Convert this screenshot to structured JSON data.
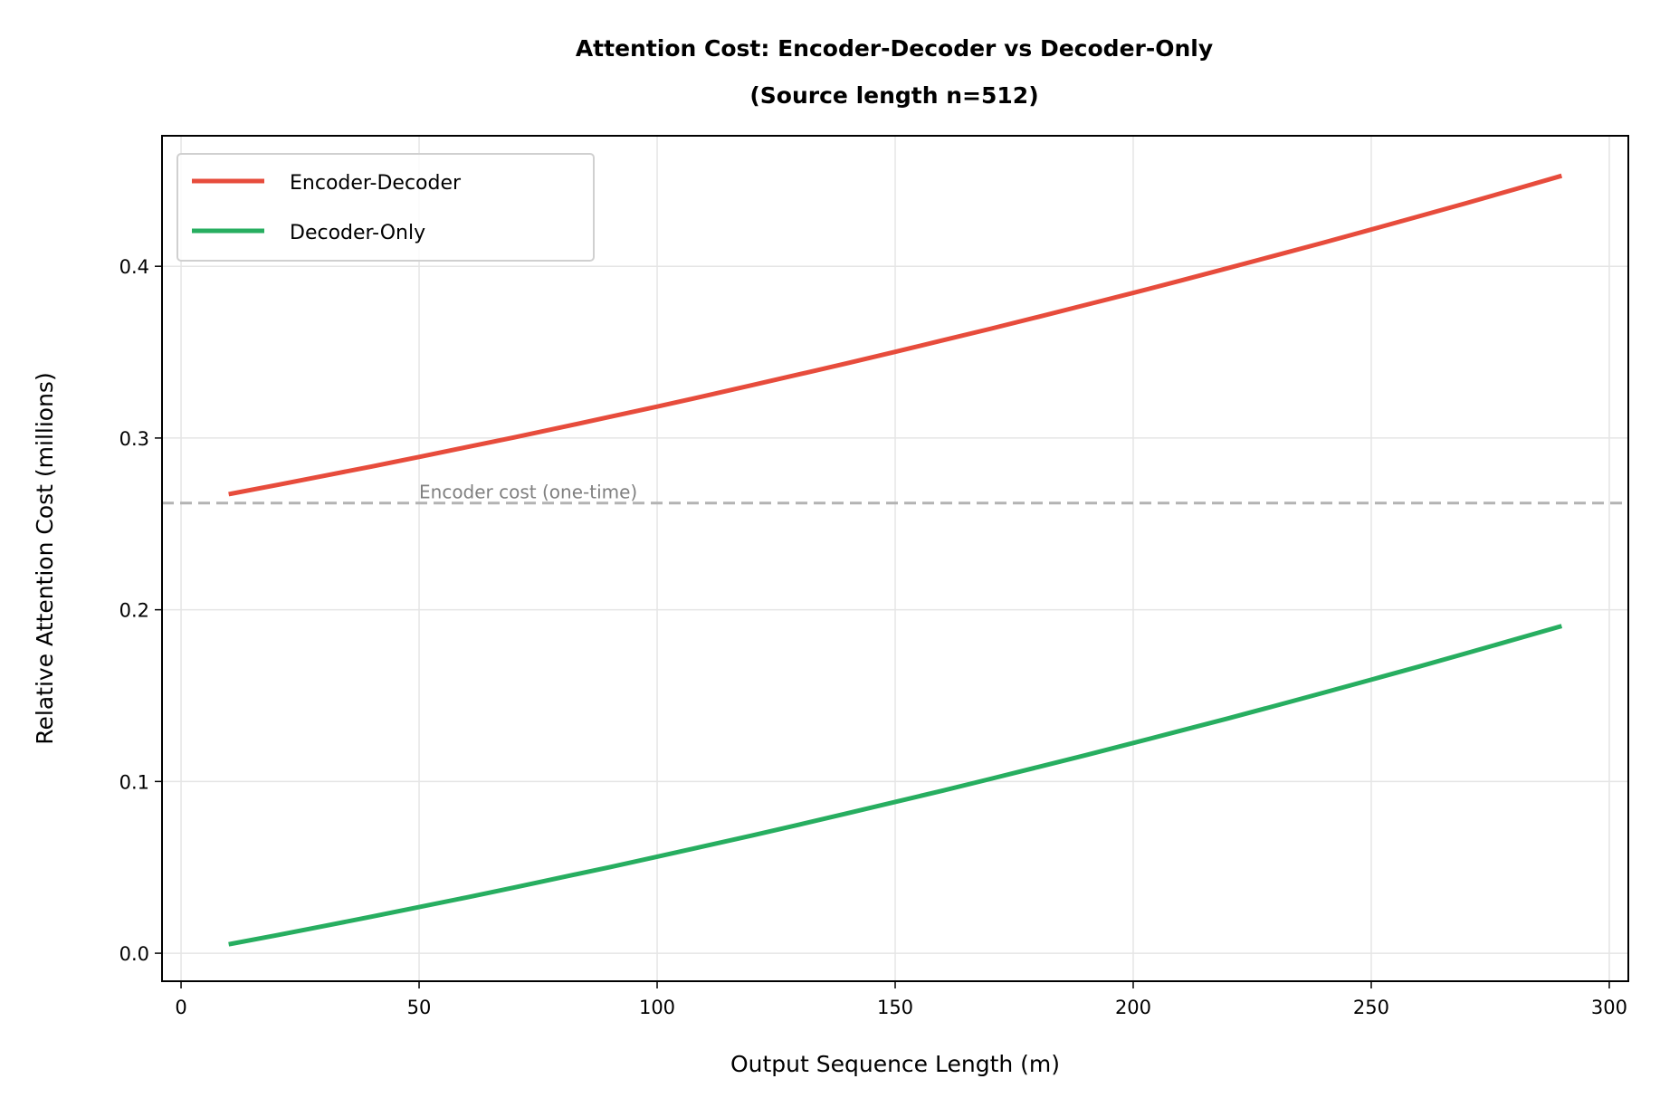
{
  "chart_data": {
    "type": "line",
    "title": "Attention Cost: Encoder-Decoder vs Decoder-Only",
    "subtitle": "(Source length n=512)",
    "xlabel": "Output Sequence Length (m)",
    "ylabel": "Relative Attention Cost (millions)",
    "xlim": [
      -4,
      304
    ],
    "ylim": [
      -0.0163,
      0.476
    ],
    "xticks": [
      0,
      50,
      100,
      150,
      200,
      250,
      300
    ],
    "xtick_labels": [
      "0",
      "50",
      "100",
      "150",
      "200",
      "250",
      "300"
    ],
    "yticks": [
      0.0,
      0.1,
      0.2,
      0.3,
      0.4
    ],
    "ytick_labels": [
      "0.0",
      "0.1",
      "0.2",
      "0.3",
      "0.4"
    ],
    "grid": true,
    "legend_position": "top-left",
    "x": [
      10,
      20,
      30,
      40,
      50,
      60,
      70,
      80,
      90,
      100,
      110,
      120,
      130,
      140,
      150,
      160,
      170,
      180,
      190,
      200,
      210,
      220,
      230,
      240,
      250,
      260,
      270,
      280,
      290
    ],
    "series": [
      {
        "name": "Encoder-Decoder",
        "color": "#e74c3c",
        "values": [
          0.2673,
          0.2726,
          0.278,
          0.2834,
          0.289,
          0.2947,
          0.3004,
          0.3063,
          0.3123,
          0.3183,
          0.3245,
          0.3308,
          0.3372,
          0.3436,
          0.3502,
          0.3569,
          0.3636,
          0.3705,
          0.3775,
          0.3845,
          0.3917,
          0.399,
          0.4064,
          0.4138,
          0.4214,
          0.4291,
          0.4368,
          0.4447,
          0.4527
        ]
      },
      {
        "name": "Decoder-Only",
        "color": "#27ae60",
        "values": [
          0.0052,
          0.0104,
          0.0158,
          0.0213,
          0.0269,
          0.0325,
          0.0383,
          0.0442,
          0.0501,
          0.0562,
          0.0624,
          0.0686,
          0.075,
          0.0815,
          0.0881,
          0.0947,
          0.1015,
          0.1084,
          0.1153,
          0.1224,
          0.1296,
          0.1368,
          0.1442,
          0.1517,
          0.1593,
          0.1669,
          0.1747,
          0.1826,
          0.1905
        ]
      }
    ],
    "reference_line": {
      "y": 0.262144,
      "color": "#b3b3b3",
      "style": "dashed"
    },
    "annotation": {
      "text": "Encoder cost (one-time)",
      "x": 50,
      "y": 0.262144,
      "color": "#808080"
    }
  }
}
